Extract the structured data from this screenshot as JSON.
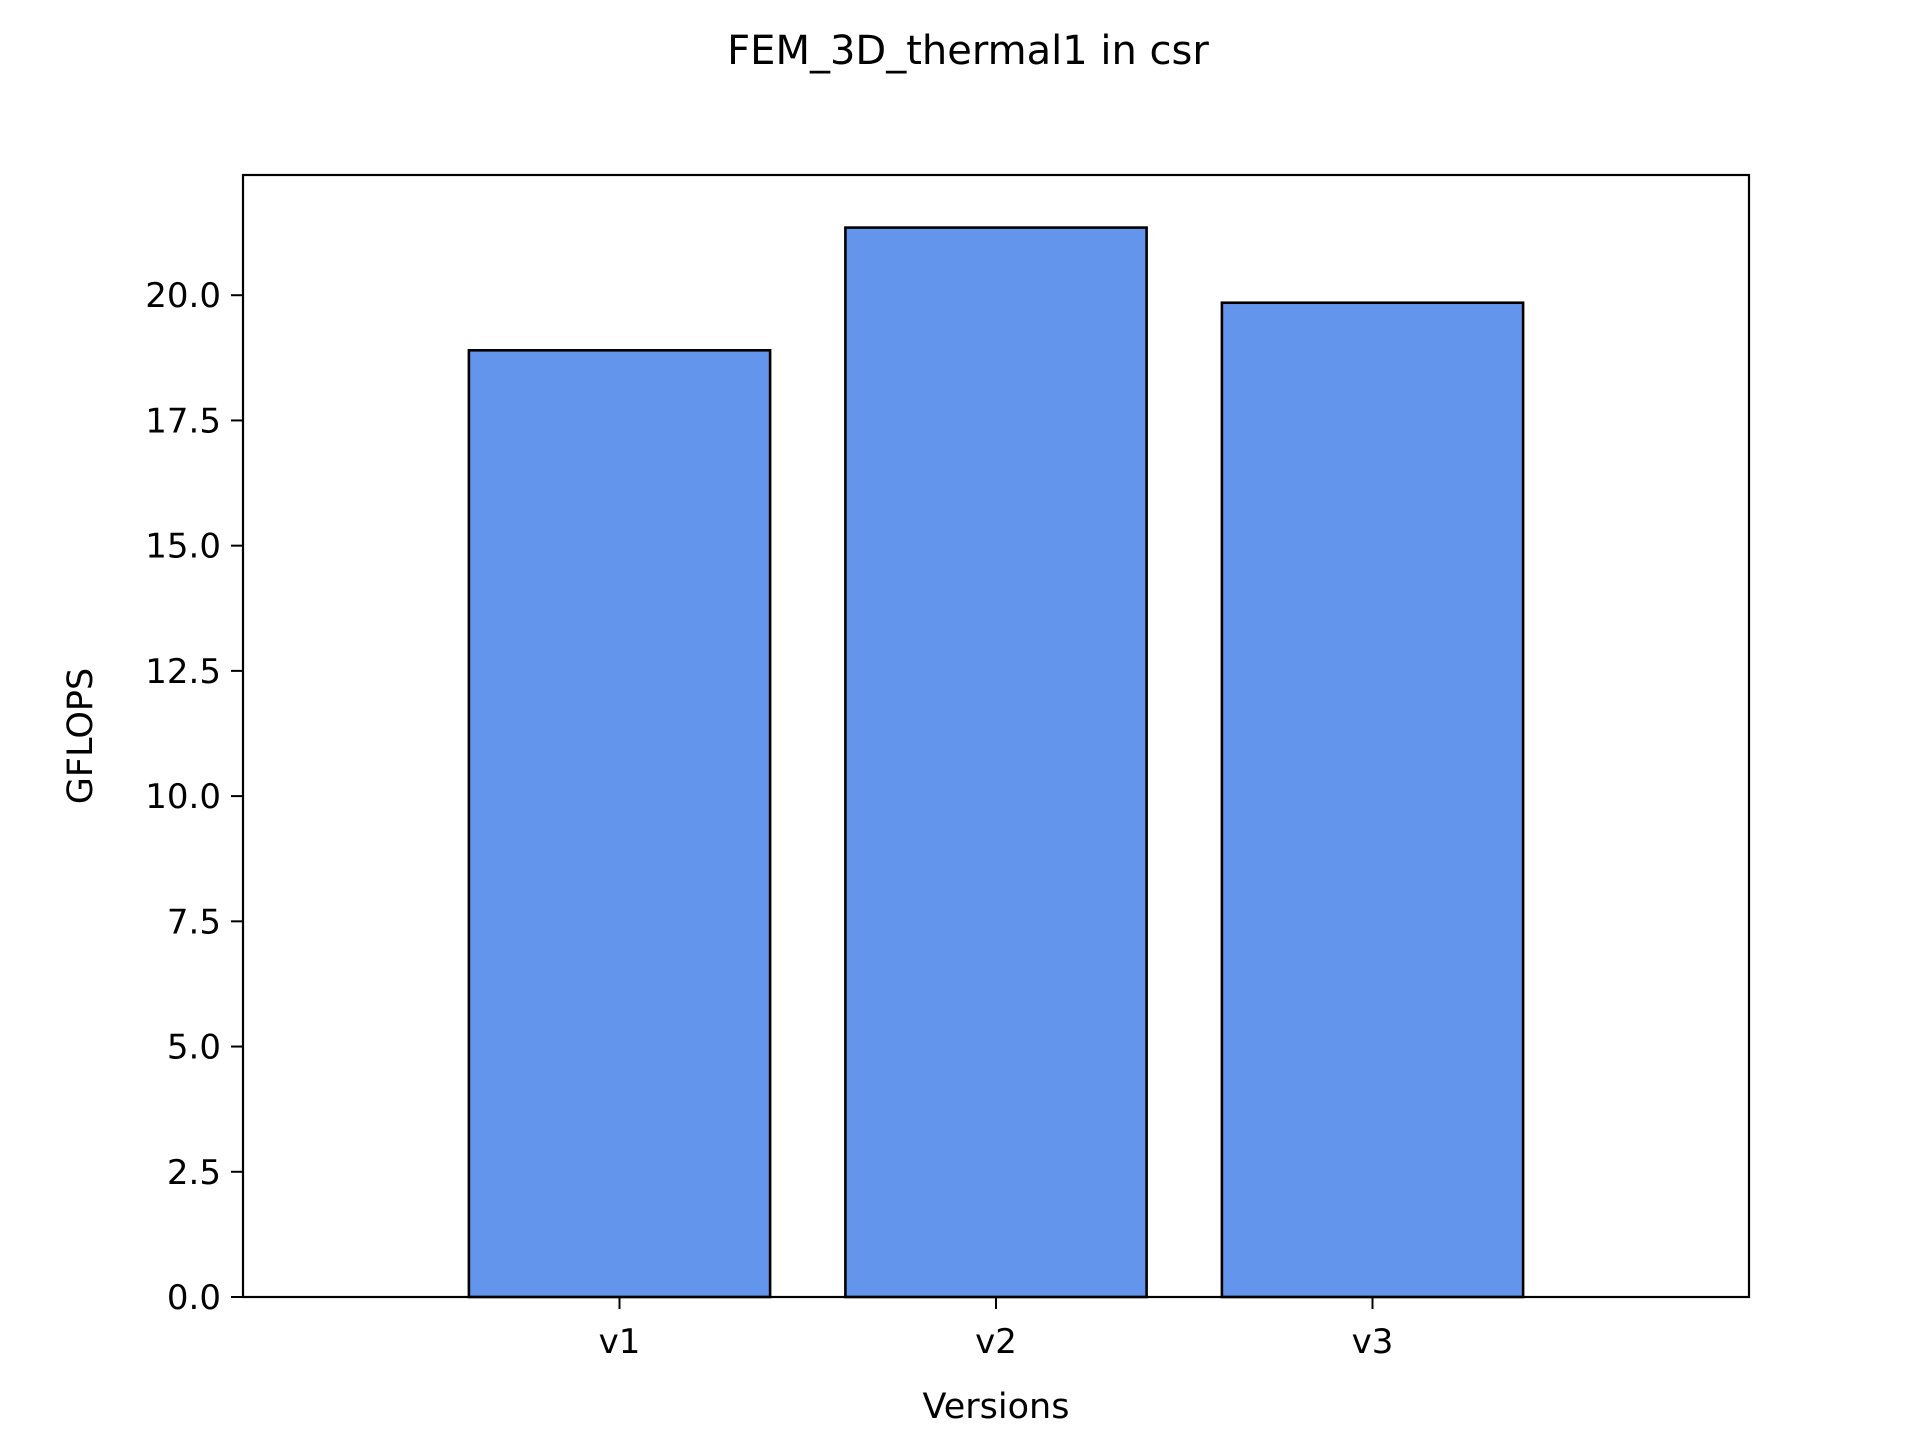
{
  "chart_data": {
    "type": "bar",
    "title": "FEM_3D_thermal1 in csr",
    "xlabel": "Versions",
    "ylabel": "GFLOPS",
    "categories": [
      "v1",
      "v2",
      "v3"
    ],
    "values": [
      18.9,
      21.35,
      19.85
    ],
    "ylim": [
      0,
      22.4
    ],
    "yticks": [
      0.0,
      2.5,
      5.0,
      7.5,
      10.0,
      12.5,
      15.0,
      17.5,
      20.0
    ],
    "ytick_labels": [
      "0.0",
      "2.5",
      "5.0",
      "7.5",
      "10.0",
      "12.5",
      "15.0",
      "17.5",
      "20.0"
    ],
    "grid": false,
    "legend": "none",
    "colors": {
      "bar_fill": "#6495ED",
      "bar_edge": "#000000",
      "axes": "#000000",
      "background": "#ffffff"
    }
  }
}
